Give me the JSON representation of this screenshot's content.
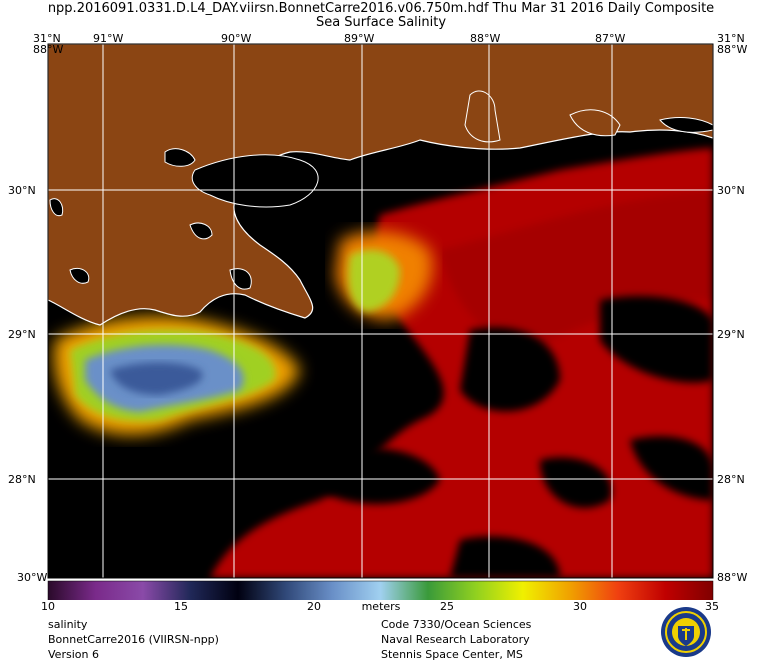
{
  "header": {
    "line1": "npp.2016091.0331.D.L4_DAY.viirsn.BonnetCarre2016.v06.750m.hdf    Thu Mar 31 2016 Daily Composite",
    "line2": "Sea Surface Salinity"
  },
  "map": {
    "lon_top_left": "31°N",
    "lon_top_labels": [
      "91°W",
      "90°W",
      "89°W",
      "88°W",
      "87°W"
    ],
    "lon_top_right": "31°N",
    "corner_tl_alt": "88°W",
    "corner_tr_alt": "88°W",
    "corner_bl": "30°W",
    "corner_br": "88°W",
    "lat_labels_left": [
      "30°N",
      "29°N",
      "28°N"
    ],
    "lat_labels_right": [
      "30°N",
      "29°N",
      "28°N"
    ],
    "lon_range": [
      "91.4°W",
      "86.7°W"
    ],
    "lat_range": [
      "27.7°N",
      "31°N"
    ],
    "colors": {
      "land": "#8b4513",
      "water_missing": "#000000",
      "coastline": "#ffffff",
      "grid": "#ffffff"
    }
  },
  "colorbar": {
    "ticks": [
      "10",
      "15",
      "20",
      "25",
      "30",
      "35"
    ],
    "unit": "meters",
    "range": [
      10,
      35
    ],
    "stops": [
      "#2a0a2a",
      "#7a2a8a",
      "#8a4aa8",
      "#202858",
      "#000010",
      "#304878",
      "#6a90c8",
      "#a0d0f0",
      "#3a9a3a",
      "#90d020",
      "#f0f000",
      "#f0a000",
      "#f04010",
      "#c00000",
      "#800000"
    ]
  },
  "footer": {
    "left": [
      "salinity",
      "BonnetCarre2016 (VIIRSN-npp)",
      "Version 6"
    ],
    "right": [
      "Code 7330/Ocean Sciences",
      "Naval Research Laboratory",
      "Stennis Space Center, MS"
    ]
  },
  "seal": {
    "name": "naval-research-laboratory-seal",
    "colors": [
      "#1a3a8a",
      "#f0d000"
    ]
  }
}
